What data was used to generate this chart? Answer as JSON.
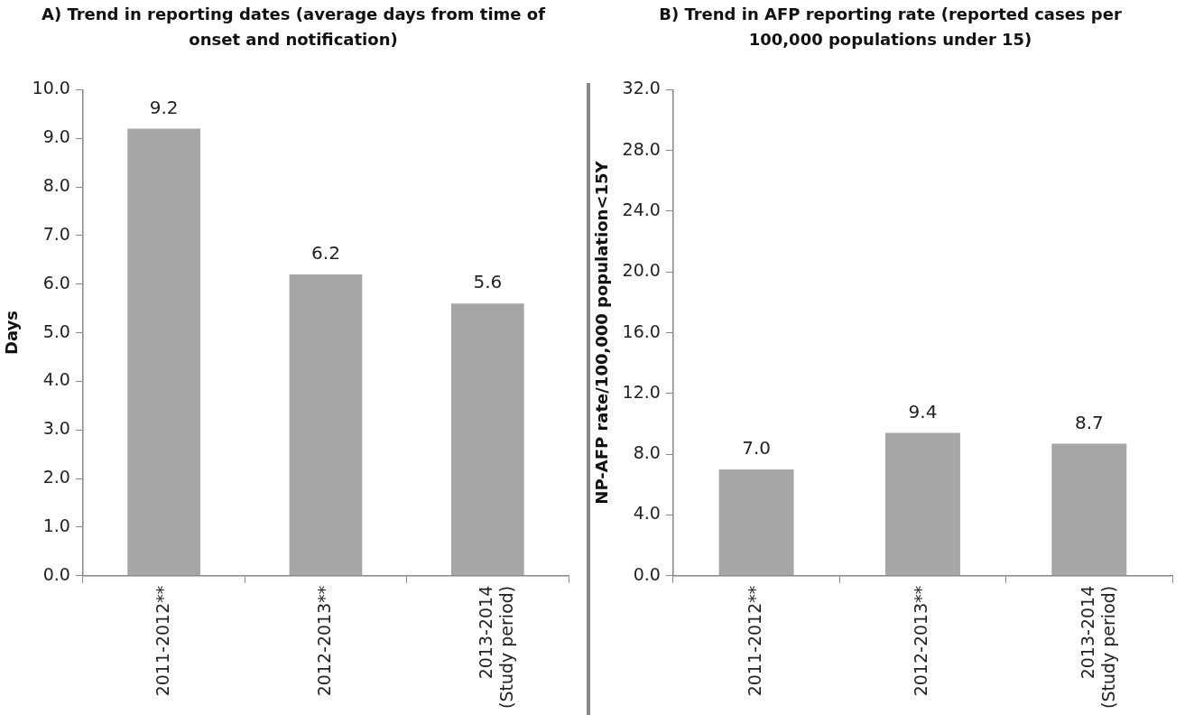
{
  "chart_data": [
    {
      "type": "bar",
      "title": "A) Trend in reporting dates (average days from time of onset and notification)",
      "ylabel": "Days",
      "categories": [
        "2011-2012**",
        "2012-2013**",
        "2013-2014\n(Study period)"
      ],
      "series": [
        {
          "color": "#a6a6a6",
          "values": [
            9.2,
            6.2,
            5.6
          ],
          "value_labels": [
            "9.2",
            "6.2",
            "5.6"
          ]
        }
      ],
      "ylim": [
        0,
        10
      ],
      "yticks": [
        {
          "value": 0,
          "label": "0.0"
        },
        {
          "value": 1,
          "label": "1.0"
        },
        {
          "value": 2,
          "label": "2.0"
        },
        {
          "value": 3,
          "label": "3.0"
        },
        {
          "value": 4,
          "label": "4.0"
        },
        {
          "value": 5,
          "label": "5.0"
        },
        {
          "value": 6,
          "label": "6.0"
        },
        {
          "value": 7,
          "label": "7.0"
        },
        {
          "value": 8,
          "label": "8.0"
        },
        {
          "value": 9,
          "label": "9.0"
        },
        {
          "value": 10,
          "label": "10.0"
        }
      ],
      "grid": false,
      "legend": false
    },
    {
      "type": "bar",
      "title": "B)  Trend in AFP reporting rate (reported cases per 100,000 populations under 15)",
      "ylabel": "NP-AFP rate/100,000 population<15Y",
      "categories": [
        "2011-2012**",
        "2012-2013**",
        "2013-2014\n(Study period)"
      ],
      "series": [
        {
          "color": "#a6a6a6",
          "values": [
            7.0,
            9.4,
            8.7
          ],
          "value_labels": [
            "7.0",
            "9.4",
            "8.7"
          ]
        }
      ],
      "ylim": [
        0,
        32
      ],
      "yticks": [
        {
          "value": 0,
          "label": "0.0"
        },
        {
          "value": 4,
          "label": "4.0"
        },
        {
          "value": 8,
          "label": "8.0"
        },
        {
          "value": 12,
          "label": "12.0"
        },
        {
          "value": 16,
          "label": "16.0"
        },
        {
          "value": 20,
          "label": "20.0"
        },
        {
          "value": 24,
          "label": "24.0"
        },
        {
          "value": 28,
          "label": "28.0"
        },
        {
          "value": 32,
          "label": "32.0"
        }
      ],
      "grid": false,
      "legend": false
    }
  ]
}
